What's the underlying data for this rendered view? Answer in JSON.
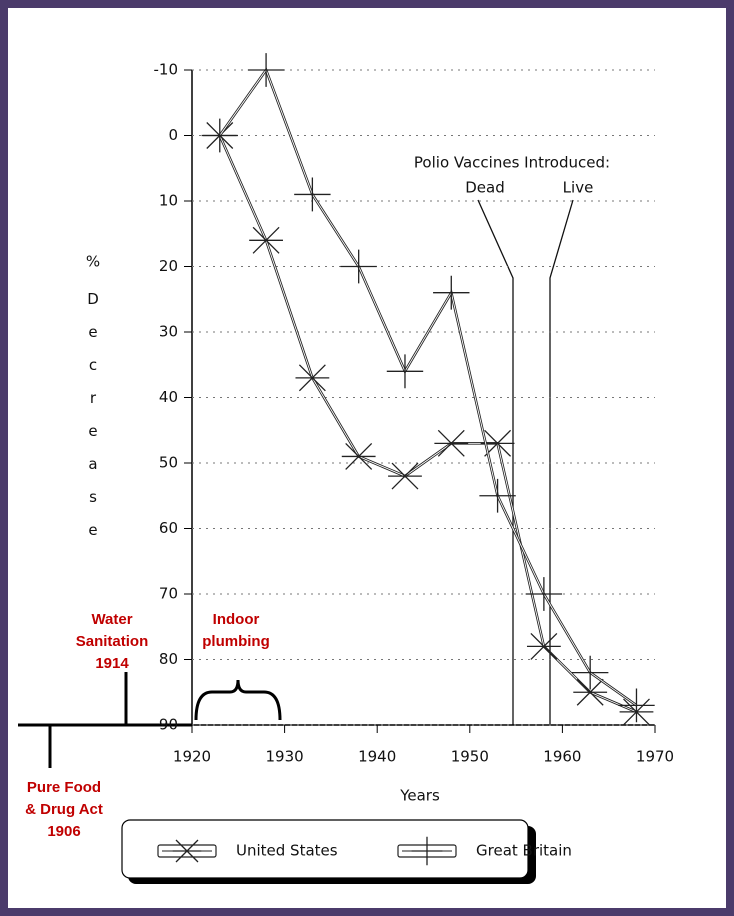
{
  "chart_data": {
    "type": "line",
    "x_label": "Years",
    "y_unit": "%",
    "y_label": "Decrease",
    "x": [
      1923,
      1928,
      1933,
      1938,
      1943,
      1948,
      1953,
      1958,
      1963,
      1968
    ],
    "series": [
      {
        "name": "United States",
        "color": "#222222",
        "marker": "x",
        "values": [
          0,
          16,
          37,
          49,
          52,
          47,
          47,
          78,
          85,
          88
        ]
      },
      {
        "name": "Great Britain",
        "color": "#222222",
        "marker": "+",
        "values": [
          0,
          -10,
          9,
          20,
          36,
          24,
          55,
          70,
          82,
          87
        ]
      }
    ],
    "xlim": [
      1920,
      1970
    ],
    "xticks": [
      1920,
      1930,
      1940,
      1950,
      1960,
      1970
    ],
    "ylim": [
      -10,
      90
    ],
    "y_inverted": true,
    "yticks": [
      -10,
      0,
      10,
      20,
      30,
      40,
      50,
      60,
      70,
      80,
      90
    ],
    "grid": true,
    "annotations": [
      "Polio Vaccines Introduced:",
      "Dead",
      "Live"
    ],
    "notes": [
      {
        "lines": [
          "Water",
          "Sanitation",
          "1914"
        ]
      },
      {
        "lines": [
          "Indoor",
          "plumbing"
        ]
      },
      {
        "lines": [
          "Pure Food",
          "& Drug Act",
          "1906"
        ]
      }
    ]
  }
}
